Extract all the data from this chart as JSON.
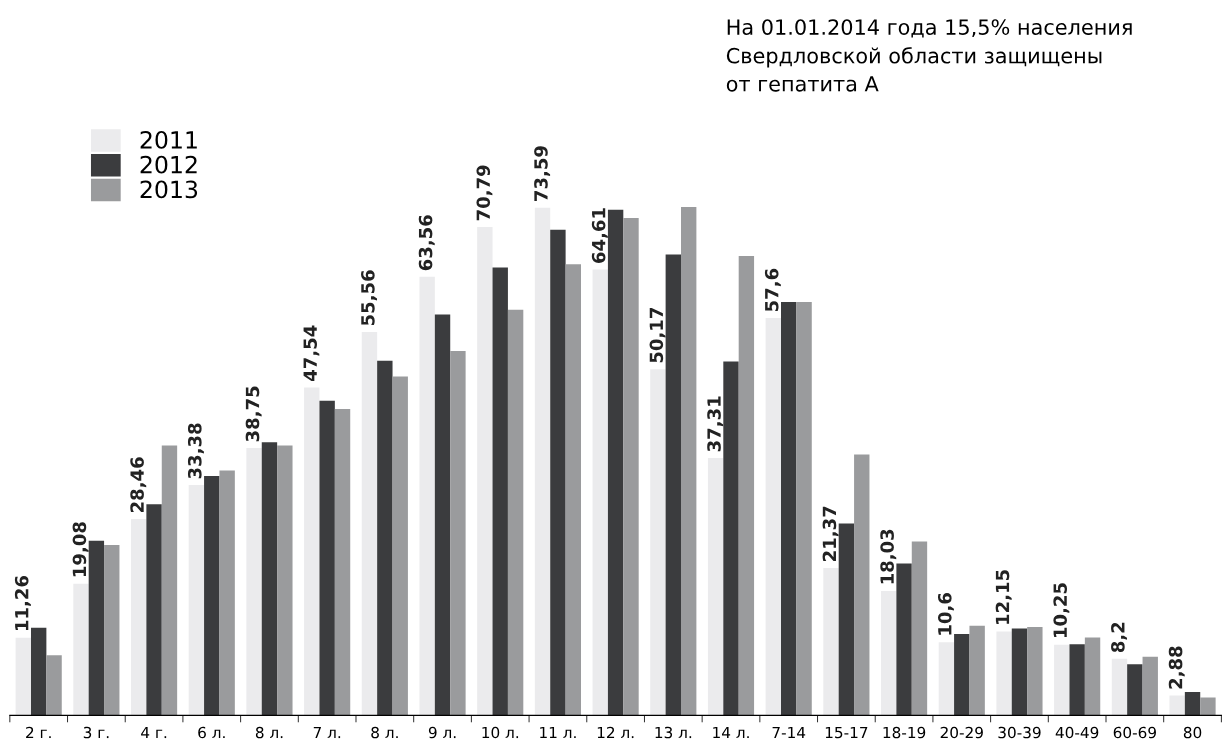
{
  "chart_data": {
    "type": "bar",
    "annotations": [
      "На 01.01.2014 года 15,5% населения\nСвердловской области защищены\nот гепатита А"
    ],
    "categories": [
      "2 г.",
      "3 г.",
      "4 г.",
      "6 л.",
      "8 л.",
      "7 л.",
      "8 л.",
      "9 л.",
      "10 л.",
      "11 л.",
      "12 л.",
      "13 л.",
      "14 л.",
      "7-14",
      "15-17",
      "18-19",
      "20-29",
      "30-39",
      "40-49",
      "60-69",
      "80"
    ],
    "series": [
      {
        "name": "2011",
        "color": "#ebebed",
        "values": [
          11.26,
          19.08,
          28.46,
          33.38,
          38.75,
          47.54,
          55.56,
          63.56,
          70.79,
          73.59,
          64.61,
          50.17,
          37.31,
          57.6,
          21.37,
          18.03,
          10.6,
          12.15,
          10.25,
          8.2,
          2.88
        ],
        "value_labels": [
          "11,26",
          "19,08",
          "28,46",
          "33,38",
          "38,75",
          "47,54",
          "55,56",
          "63,56",
          "70,79",
          "73,59",
          "64,61",
          "50,17",
          "37,31",
          "57,6",
          "21,37",
          "18,03",
          "10,6",
          "12,15",
          "10,25",
          "8,2",
          "2,88"
        ]
      },
      {
        "name": "2012",
        "color": "#3b3c3e",
        "values": [
          12.7,
          25.3,
          30.6,
          34.7,
          39.6,
          45.6,
          51.4,
          58.1,
          64.9,
          70.4,
          73.3,
          66.8,
          51.3,
          59.9,
          27.8,
          22.0,
          11.8,
          12.6,
          10.3,
          7.4,
          3.4
        ]
      },
      {
        "name": "2013",
        "color": "#9a9b9d",
        "values": [
          8.7,
          24.7,
          39.1,
          35.5,
          39.1,
          44.4,
          49.1,
          52.8,
          58.8,
          65.4,
          72.1,
          73.7,
          66.6,
          59.9,
          37.8,
          25.2,
          13.0,
          12.8,
          11.3,
          8.5,
          2.6
        ]
      }
    ],
    "legend": "top left"
  }
}
